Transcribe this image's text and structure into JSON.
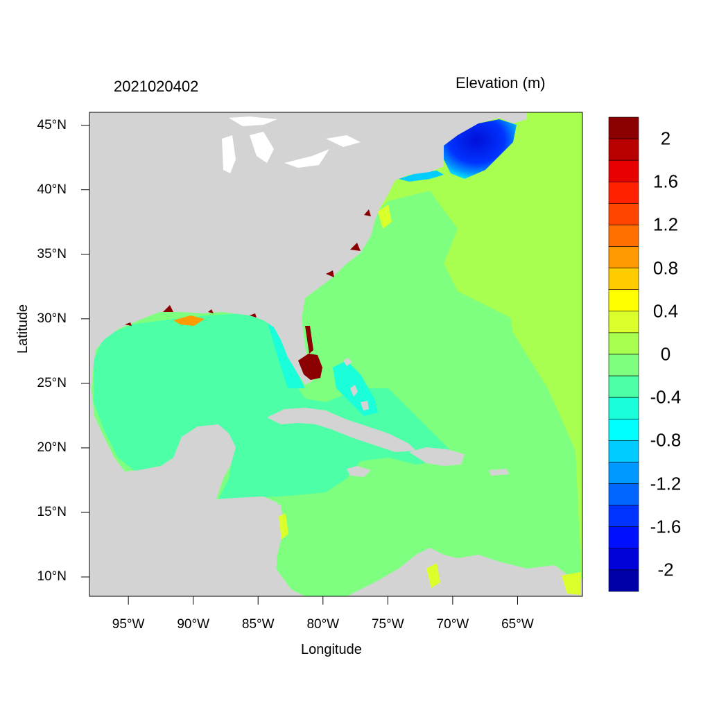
{
  "header": {
    "date": "2021020402",
    "variable": "Elevation (m)"
  },
  "axes": {
    "xlabel": "Longitude",
    "ylabel": "Latitude",
    "xticks": [
      "95°W",
      "90°W",
      "85°W",
      "80°W",
      "75°W",
      "70°W",
      "65°W"
    ],
    "yticks": [
      "45°N",
      "40°N",
      "35°N",
      "30°N",
      "25°N",
      "20°N",
      "15°N",
      "10°N"
    ]
  },
  "map": {
    "region": "western North Atlantic, Gulf of Mexico and Caribbean Sea",
    "lon_range": [
      -98,
      -60
    ],
    "lat_range": [
      8.5,
      46
    ],
    "land_color": "#d3d3d3",
    "ocean_colors": {
      "gulf_caribbean": "#4dffa6",
      "atlantic": "#7fff7f",
      "open_ocean": "#a8ff50",
      "gulf_of_maine": "#0010d8",
      "florida_tip": "#8b0000"
    }
  },
  "colorbar": {
    "labels": [
      "2",
      "1.6",
      "1.2",
      "0.8",
      "0.4",
      "0",
      "-0.4",
      "-0.8",
      "-1.2",
      "-1.6",
      "-2"
    ],
    "colors": [
      "#8b0000",
      "#b80000",
      "#e60000",
      "#ff2000",
      "#ff4500",
      "#ff7000",
      "#ff9a00",
      "#ffcc00",
      "#ffff00",
      "#dbff2a",
      "#a8ff50",
      "#7fff7f",
      "#4dffa6",
      "#1affd9",
      "#00ffff",
      "#00ccff",
      "#0099ff",
      "#0066ff",
      "#0033ff",
      "#0010ff",
      "#0000d8",
      "#0000a8"
    ]
  }
}
